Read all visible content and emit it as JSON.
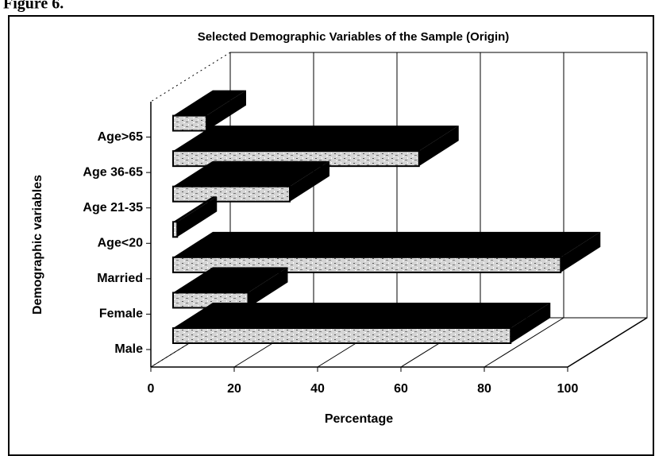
{
  "heading": "Figure 6.",
  "chart_data": {
    "type": "bar3d",
    "orientation": "horizontal",
    "title": "Selected Demographic Variables of the Sample (Origin)",
    "y_label": "Demographic variables",
    "x_label": "Percentage",
    "categories": [
      "Male",
      "Female",
      "Married",
      "Age<20",
      "Age 21-35",
      "Age 36-65",
      "Age>65"
    ],
    "values": [
      81,
      18,
      93,
      1,
      28,
      59,
      8
    ],
    "xlim": [
      0,
      100
    ],
    "xticks": [
      0,
      20,
      40,
      60,
      80,
      100
    ],
    "grid": true,
    "color": "#000000"
  }
}
